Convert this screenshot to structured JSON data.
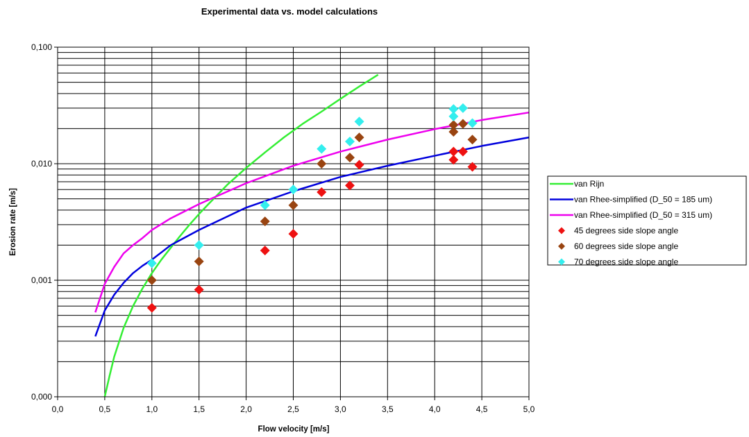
{
  "chart_data": {
    "type": "scatter",
    "title": "Experimental data vs. model calculations",
    "xlabel": "Flow velocity [m/s]",
    "ylabel": "Erosion rate [m/s]",
    "xlim": [
      0,
      5
    ],
    "ylim": [
      0.0001,
      0.1
    ],
    "yscale": "log",
    "grid": true,
    "legend_position": "right",
    "x_ticks": [
      "0,0",
      "0,5",
      "1,0",
      "1,5",
      "2,0",
      "2,5",
      "3,0",
      "3,5",
      "4,0",
      "4,5",
      "5,0"
    ],
    "y_ticks": [
      "0,000",
      "0,001",
      "0,010",
      "0,100"
    ],
    "lines": [
      {
        "name": "van Rijn",
        "color": "#33ee33",
        "x": [
          0.5,
          0.55,
          0.6,
          0.7,
          0.8,
          0.9,
          1.0,
          1.1,
          1.2,
          1.3,
          1.4,
          1.5,
          1.6,
          1.8,
          2.0,
          2.2,
          2.4,
          2.6,
          2.8,
          3.0,
          3.2,
          3.4
        ],
        "y": [
          0.0001,
          0.00015,
          0.00022,
          0.00039,
          0.0006,
          0.00085,
          0.00115,
          0.0015,
          0.0019,
          0.0024,
          0.003,
          0.0037,
          0.0045,
          0.0066,
          0.0092,
          0.0125,
          0.0168,
          0.022,
          0.028,
          0.036,
          0.046,
          0.058
        ]
      },
      {
        "name": "van Rhee-simplified (D_50 = 185 um)",
        "color": "#0000dd",
        "x": [
          0.4,
          0.5,
          0.6,
          0.7,
          0.8,
          0.9,
          1.0,
          1.2,
          1.5,
          2.0,
          2.5,
          3.0,
          3.5,
          4.0,
          4.5,
          5.0
        ],
        "y": [
          0.00033,
          0.00055,
          0.00075,
          0.00095,
          0.00115,
          0.00133,
          0.0015,
          0.002,
          0.0027,
          0.0042,
          0.0058,
          0.0077,
          0.0096,
          0.0117,
          0.0142,
          0.0168
        ]
      },
      {
        "name": "van Rhee-simplified (D_50 = 315 um)",
        "color": "#ee00ee",
        "x": [
          0.4,
          0.5,
          0.6,
          0.7,
          0.8,
          0.9,
          1.0,
          1.2,
          1.5,
          2.0,
          2.5,
          3.0,
          3.5,
          4.0,
          4.5,
          5.0
        ],
        "y": [
          0.00053,
          0.00093,
          0.0013,
          0.0017,
          0.002,
          0.0023,
          0.0027,
          0.0034,
          0.0045,
          0.0068,
          0.0096,
          0.0127,
          0.0161,
          0.0198,
          0.0237,
          0.0275
        ]
      }
    ],
    "series": [
      {
        "name": "45 degrees side slope angle",
        "color": "#ee1111",
        "x": [
          1.0,
          1.5,
          2.2,
          2.5,
          2.8,
          3.1,
          3.2,
          4.2,
          4.2,
          4.3,
          4.4
        ],
        "y": [
          0.00058,
          0.00083,
          0.0018,
          0.0025,
          0.0057,
          0.0065,
          0.0098,
          0.0108,
          0.0127,
          0.0127,
          0.0094
        ]
      },
      {
        "name": "60 degrees side slope angle",
        "color": "#994411",
        "x": [
          1.0,
          1.5,
          2.2,
          2.5,
          2.8,
          3.1,
          3.2,
          4.2,
          4.2,
          4.3,
          4.4
        ],
        "y": [
          0.001,
          0.00145,
          0.0032,
          0.0044,
          0.01,
          0.0113,
          0.0168,
          0.0188,
          0.0215,
          0.022,
          0.0161
        ]
      },
      {
        "name": "70 degrees side slope angle",
        "color": "#33eeee",
        "x": [
          1.0,
          1.5,
          2.2,
          2.5,
          2.8,
          3.1,
          3.2,
          4.2,
          4.2,
          4.3,
          4.4
        ],
        "y": [
          0.0014,
          0.002,
          0.0044,
          0.006,
          0.0134,
          0.0155,
          0.023,
          0.0255,
          0.0295,
          0.03,
          0.0223
        ]
      }
    ]
  }
}
